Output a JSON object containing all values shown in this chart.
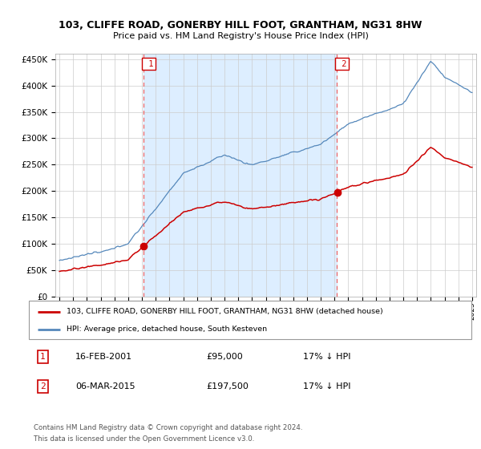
{
  "title": "103, CLIFFE ROAD, GONERBY HILL FOOT, GRANTHAM, NG31 8HW",
  "subtitle": "Price paid vs. HM Land Registry's House Price Index (HPI)",
  "legend_label_red": "103, CLIFFE ROAD, GONERBY HILL FOOT, GRANTHAM, NG31 8HW (detached house)",
  "legend_label_blue": "HPI: Average price, detached house, South Kesteven",
  "footer_line1": "Contains HM Land Registry data © Crown copyright and database right 2024.",
  "footer_line2": "This data is licensed under the Open Government Licence v3.0.",
  "event1_label": "1",
  "event1_date": "16-FEB-2001",
  "event1_price": "£95,000",
  "event1_hpi": "17% ↓ HPI",
  "event2_label": "2",
  "event2_date": "06-MAR-2015",
  "event2_price": "£197,500",
  "event2_hpi": "17% ↓ HPI",
  "red_color": "#cc0000",
  "blue_color": "#5588bb",
  "dashed_color": "#ee6666",
  "shade_color": "#ddeeff",
  "background_color": "#ffffff",
  "ylim": [
    0,
    460000
  ],
  "yticks": [
    0,
    50000,
    100000,
    150000,
    200000,
    250000,
    300000,
    350000,
    400000,
    450000
  ],
  "start_year": 1995,
  "end_year": 2025,
  "sale1_year_val": 2001.122,
  "sale2_year_val": 2015.178,
  "sale1_price": 95000,
  "sale2_price": 197500
}
